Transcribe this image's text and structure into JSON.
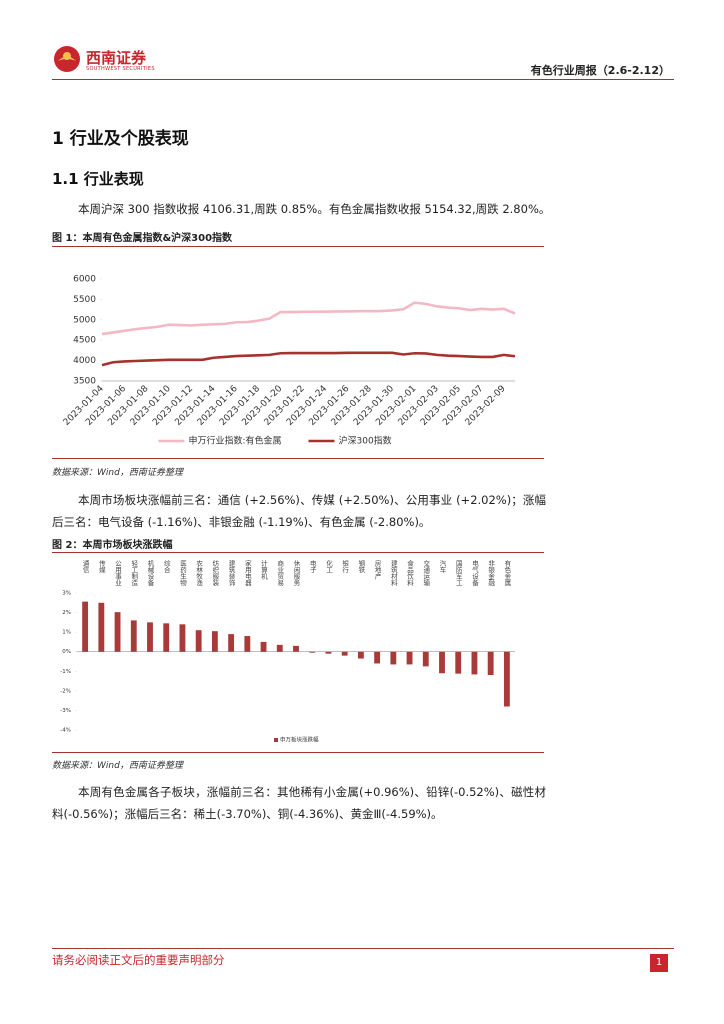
{
  "header": {
    "logo_name": "西南证券",
    "logo_en": "SOUTHWEST SECURITIES",
    "report": "有色行业周报（2.6-2.12）"
  },
  "section": "1  行业及个股表现",
  "subsection": "1.1 行业表现",
  "paragraphs": [
    "本周沪深 300 指数收报 4106.31,周跌 0.85%。有色金属指数收报 5154.32,周跌 2.80%。",
    "本周市场板块涨幅前三名：通信 (+2.56%)、传媒 (+2.50%)、公用事业 (+2.02%)；涨幅后三名：电气设备 (-1.16%)、非银金融 (-1.19%)、有色金属 (-2.80%)。",
    "本周有色金属各子板块，涨幅前三名：其他稀有小金属(+0.96%)、铅锌(-0.52%)、磁性材料(-0.56%)；涨幅后三名：稀土(-3.70%)、铜(-4.36%)、黄金Ⅲ(-4.59%)。"
  ],
  "figures": [
    {
      "caption": "图 1：本周有色金属指数&沪深300指数",
      "source": "数据来源：Wind，西南证券整理"
    },
    {
      "caption": "图 2：本周市场板块涨跌幅",
      "source": "数据来源：Wind，西南证券整理"
    }
  ],
  "chart_data": [
    {
      "type": "line",
      "categories": [
        "2023-01-04",
        null,
        "2023-01-06",
        null,
        "2023-01-08",
        null,
        "2023-01-10",
        null,
        "2023-01-12",
        null,
        "2023-01-14",
        null,
        "2023-01-16",
        null,
        "2023-01-18",
        null,
        "2023-01-20",
        null,
        "2023-01-22",
        null,
        "2023-01-24",
        null,
        "2023-01-26",
        null,
        "2023-01-28",
        null,
        "2023-01-30",
        null,
        "2023-02-01",
        null,
        "2023-02-03",
        null,
        "2023-02-05",
        null,
        "2023-02-07",
        null,
        "2023-02-09",
        null
      ],
      "series": [
        {
          "name": "申万行业指数:有色金属",
          "color": "#f4b8c4",
          "values": [
            4650,
            4690,
            4730,
            4770,
            4800,
            4830,
            4880,
            4870,
            4860,
            4880,
            4890,
            4900,
            4940,
            4945,
            4980,
            5030,
            5190,
            5190,
            5195,
            5200,
            5200,
            5205,
            5205,
            5210,
            5210,
            5215,
            5230,
            5260,
            5420,
            5390,
            5330,
            5300,
            5280,
            5240,
            5270,
            5250,
            5270,
            5154.32
          ]
        },
        {
          "name": "沪深300指数",
          "color": "#a6322f",
          "values": [
            3890,
            3960,
            3980,
            3990,
            4000,
            4010,
            4020,
            4020,
            4020,
            4020,
            4070,
            4090,
            4110,
            4120,
            4130,
            4140,
            4180,
            4185,
            4185,
            4185,
            4185,
            4185,
            4190,
            4190,
            4190,
            4190,
            4190,
            4150,
            4180,
            4175,
            4140,
            4120,
            4110,
            4100,
            4090,
            4090,
            4140,
            4106.31
          ]
        }
      ],
      "ylim": [
        3500,
        6000
      ],
      "yticks": [
        3500,
        4000,
        4500,
        5000,
        5500,
        6000
      ],
      "grid": false,
      "legend": "bottom"
    },
    {
      "type": "bar",
      "categories": [
        "通信",
        "传媒",
        "公用事业",
        "轻工制造",
        "机械设备",
        "综合",
        "医药生物",
        "农林牧渔",
        "纺织服装",
        "建筑装饰",
        "家用电器",
        "计算机",
        "商业贸易",
        "休闲服务",
        "电子",
        "化工",
        "银行",
        "钢铁",
        "房地产",
        "建筑材料",
        "食品饮料",
        "交通运输",
        "汽车",
        "国防军工",
        "电气设备",
        "非银金融",
        "有色金属"
      ],
      "series": [
        {
          "name": "申万板块涨跌幅",
          "color": "#a83a3a",
          "values": [
            2.56,
            2.5,
            2.02,
            1.6,
            1.5,
            1.45,
            1.4,
            1.1,
            1.05,
            0.9,
            0.8,
            0.5,
            0.35,
            0.3,
            -0.05,
            -0.1,
            -0.2,
            -0.35,
            -0.6,
            -0.65,
            -0.65,
            -0.75,
            -1.1,
            -1.12,
            -1.16,
            -1.19,
            -2.8
          ]
        }
      ],
      "ylim": [
        -4,
        3
      ],
      "yticks": [
        {
          "value": 3,
          "label": "3%"
        },
        {
          "value": 2,
          "label": "2%"
        },
        {
          "value": 1,
          "label": "1%"
        },
        {
          "value": 0,
          "label": "0%"
        },
        {
          "value": -1,
          "label": "-1%"
        },
        {
          "value": -2,
          "label": "-2%"
        },
        {
          "value": -3,
          "label": "-3%"
        },
        {
          "value": -4,
          "label": "-4%"
        }
      ],
      "grid": false,
      "legend": "bottom"
    }
  ],
  "footer": {
    "disclaimer": "请务必阅读正文后的重要声明部分",
    "page": 1
  }
}
